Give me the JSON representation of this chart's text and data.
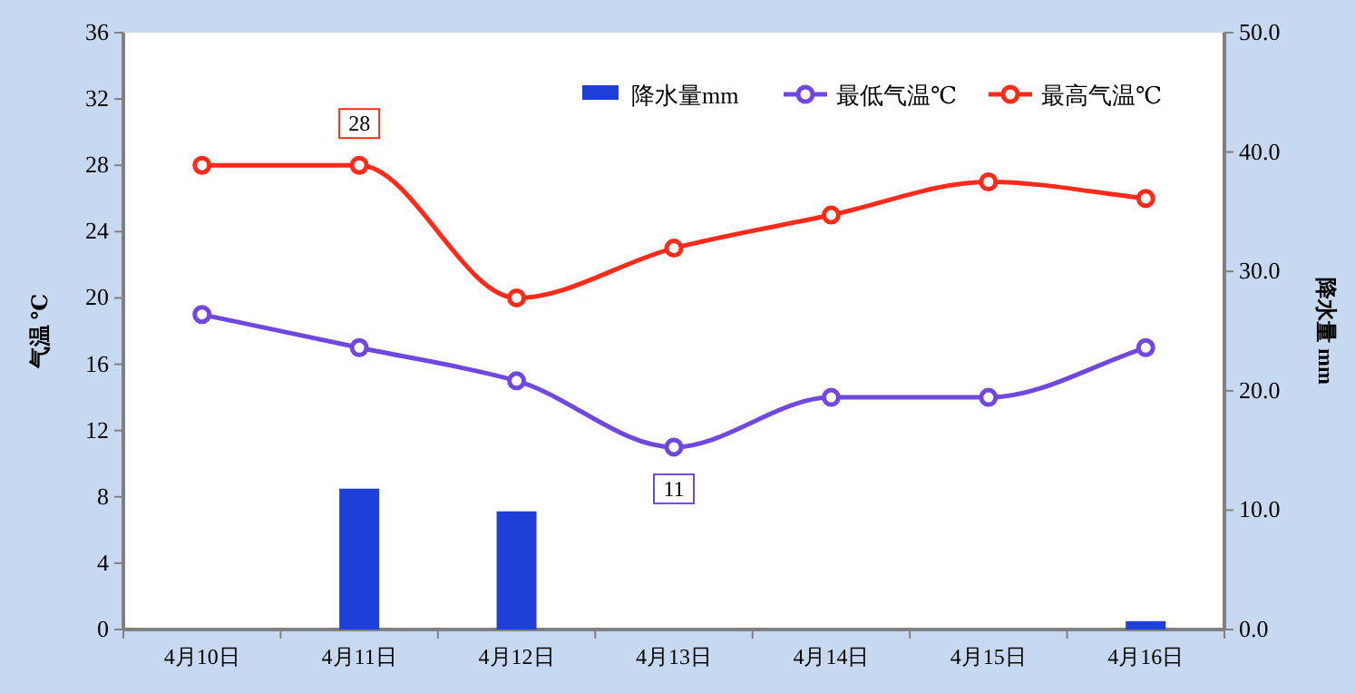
{
  "chart_data": {
    "type": "line",
    "categories": [
      "4月10日",
      "4月11日",
      "4月12日",
      "4月13日",
      "4月14日",
      "4月15日",
      "4月16日"
    ],
    "series": [
      {
        "name": "降水量mm",
        "type": "bar",
        "axis": "y2",
        "color": "#1e3fd8",
        "values": [
          0,
          11.8,
          9.9,
          0,
          0,
          0,
          0.7
        ]
      },
      {
        "name": "最低气温℃",
        "color": "#7048e0",
        "values": [
          19,
          17,
          15,
          11,
          14,
          14,
          17
        ]
      },
      {
        "name": "最高气温℃",
        "color": "#ff2a1a",
        "values": [
          28,
          28,
          20,
          23,
          25,
          27,
          26
        ]
      }
    ],
    "ylabel": "气温 ℃",
    "y2label": "降水量 mm",
    "ylim": [
      0,
      36
    ],
    "yticks": [
      0,
      4,
      8,
      12,
      16,
      20,
      24,
      28,
      32,
      36
    ],
    "y2lim": [
      0,
      50
    ],
    "y2ticks": [
      {
        "value": 0,
        "label": "0.0"
      },
      {
        "value": 10,
        "label": "10.0"
      },
      {
        "value": 20,
        "label": "20.0"
      },
      {
        "value": 30,
        "label": "30.0"
      },
      {
        "value": 40,
        "label": "40.0"
      },
      {
        "value": 50,
        "label": "50.0"
      }
    ],
    "annotations": [
      {
        "text": "28",
        "x": "4月11日",
        "y": 28
      },
      {
        "text": "11",
        "x": "4月13日",
        "y": 11
      }
    ],
    "legend": "top right",
    "marker": "circle",
    "grid": false
  }
}
